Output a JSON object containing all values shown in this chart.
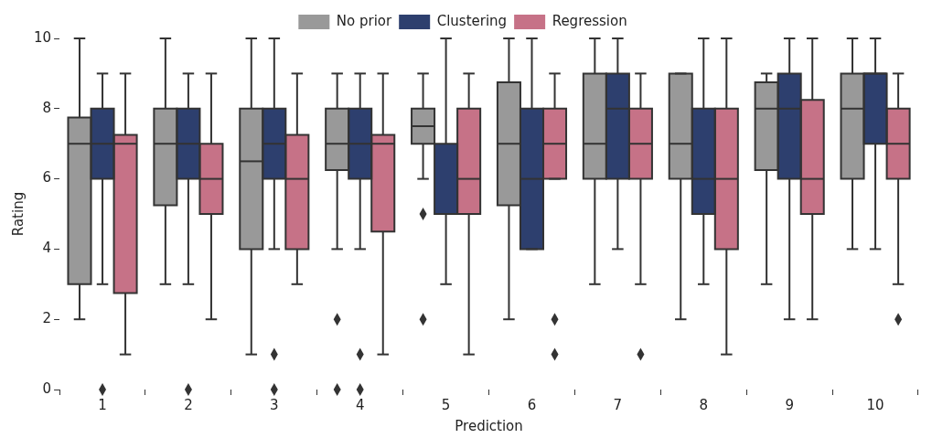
{
  "chart_data": {
    "type": "box",
    "xlabel": "Prediction",
    "ylabel": "Rating",
    "categories": [
      "1",
      "2",
      "3",
      "4",
      "5",
      "6",
      "7",
      "8",
      "9",
      "10"
    ],
    "ylim": [
      0,
      10
    ],
    "yticks": [
      0,
      2,
      4,
      6,
      8,
      10
    ],
    "grid": false,
    "legend": "top",
    "series": [
      {
        "name": "No prior",
        "color": "#999999",
        "boxes": [
          {
            "low": 2,
            "q1": 3,
            "median": 7,
            "q3": 7.75,
            "high": 10
          },
          {
            "low": 3,
            "q1": 5.25,
            "median": 7,
            "q3": 8,
            "high": 10
          },
          {
            "low": 1,
            "q1": 4,
            "median": 6.5,
            "q3": 8,
            "high": 10
          },
          {
            "low": 4,
            "q1": 6.25,
            "median": 7,
            "q3": 8,
            "high": 9,
            "outliers": [
              2,
              0
            ]
          },
          {
            "low": 6,
            "q1": 7,
            "median": 7.5,
            "q3": 8,
            "high": 9,
            "outliers": [
              5,
              2
            ]
          },
          {
            "low": 2,
            "q1": 5.25,
            "median": 7,
            "q3": 8.75,
            "high": 10
          },
          {
            "low": 3,
            "q1": 6,
            "median": 7,
            "q3": 9,
            "high": 10
          },
          {
            "low": 2,
            "q1": 6,
            "median": 7,
            "q3": 9,
            "high": 9
          },
          {
            "low": 3,
            "q1": 6.25,
            "median": 8,
            "q3": 8.75,
            "high": 9
          },
          {
            "low": 4,
            "q1": 6,
            "median": 8,
            "q3": 9,
            "high": 10
          }
        ]
      },
      {
        "name": "Clustering",
        "color": "#2d3f6e",
        "boxes": [
          {
            "low": 3,
            "q1": 6,
            "median": 7,
            "q3": 8,
            "high": 9,
            "outliers": [
              0
            ]
          },
          {
            "low": 3,
            "q1": 6,
            "median": 7,
            "q3": 8,
            "high": 9,
            "outliers": [
              0
            ]
          },
          {
            "low": 4,
            "q1": 6,
            "median": 7,
            "q3": 8,
            "high": 10,
            "outliers": [
              1,
              0
            ]
          },
          {
            "low": 4,
            "q1": 6,
            "median": 7,
            "q3": 8,
            "high": 9,
            "outliers": [
              1,
              0
            ]
          },
          {
            "low": 3,
            "q1": 5,
            "median": 5,
            "q3": 7,
            "high": 10
          },
          {
            "low": 4,
            "q1": 4,
            "median": 6,
            "q3": 8,
            "high": 10
          },
          {
            "low": 4,
            "q1": 6,
            "median": 8,
            "q3": 9,
            "high": 10
          },
          {
            "low": 3,
            "q1": 5,
            "median": 6,
            "q3": 8,
            "high": 10
          },
          {
            "low": 2,
            "q1": 6,
            "median": 8,
            "q3": 9,
            "high": 10
          },
          {
            "low": 4,
            "q1": 7,
            "median": 9,
            "q3": 9,
            "high": 10
          }
        ]
      },
      {
        "name": "Regression",
        "color": "#c67287",
        "boxes": [
          {
            "low": 1,
            "q1": 2.75,
            "median": 7,
            "q3": 7.25,
            "high": 9
          },
          {
            "low": 2,
            "q1": 5,
            "median": 6,
            "q3": 7,
            "high": 9
          },
          {
            "low": 3,
            "q1": 4,
            "median": 6,
            "q3": 7.25,
            "high": 9
          },
          {
            "low": 1,
            "q1": 4.5,
            "median": 7,
            "q3": 7.25,
            "high": 9
          },
          {
            "low": 1,
            "q1": 5,
            "median": 6,
            "q3": 8,
            "high": 9
          },
          {
            "low": 6,
            "q1": 6,
            "median": 7,
            "q3": 8,
            "high": 9,
            "outliers": [
              2,
              1
            ]
          },
          {
            "low": 3,
            "q1": 6,
            "median": 7,
            "q3": 8,
            "high": 9,
            "outliers": [
              1
            ]
          },
          {
            "low": 1,
            "q1": 4,
            "median": 6,
            "q3": 8,
            "high": 10
          },
          {
            "low": 2,
            "q1": 5,
            "median": 6,
            "q3": 8.25,
            "high": 10
          },
          {
            "low": 3,
            "q1": 6,
            "median": 7,
            "q3": 8,
            "high": 9,
            "outliers": [
              2
            ]
          }
        ]
      }
    ]
  }
}
